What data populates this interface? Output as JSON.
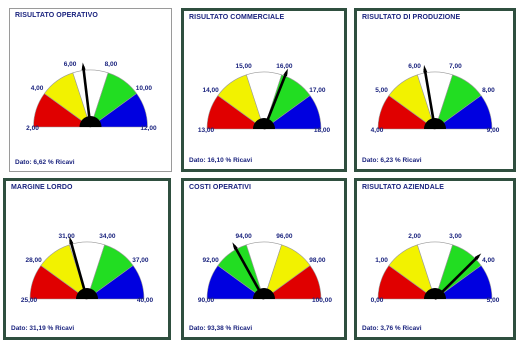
{
  "panels": [
    {
      "title": "RISULTATO OPERATIVO",
      "footer": "Dato: 6,62 % Ricavi",
      "ticks": [
        "2,00",
        "4,00",
        "6,00",
        "8,00",
        "10,00",
        "12,00"
      ],
      "value": 6.62,
      "colors": [
        "#e00000",
        "#f2f200",
        "#ffffff",
        "#22dd22",
        "#0000e0"
      ]
    },
    {
      "title": "RISULTATO  COMMERCIALE",
      "footer": "Dato: 16,10 % Ricavi",
      "ticks": [
        "13,00",
        "14,00",
        "15,00",
        "16,00",
        "17,00",
        "18,00"
      ],
      "value": 16.1,
      "colors": [
        "#e00000",
        "#f2f200",
        "#ffffff",
        "#22dd22",
        "#0000e0"
      ]
    },
    {
      "title": "RISULTATO  DI PRODUZIONE",
      "footer": "Dato: 6,23 % Ricavi",
      "ticks": [
        "4,00",
        "5,00",
        "6,00",
        "7,00",
        "8,00",
        "9,00"
      ],
      "value": 6.23,
      "colors": [
        "#e00000",
        "#f2f200",
        "#ffffff",
        "#22dd22",
        "#0000e0"
      ]
    },
    {
      "title": "MARGINE LORDO",
      "footer": "Dato: 31,19 % Ricavi",
      "ticks": [
        "25,00",
        "28,00",
        "31,00",
        "34,00",
        "37,00",
        "40,00"
      ],
      "value": 31.19,
      "colors": [
        "#e00000",
        "#f2f200",
        "#ffffff",
        "#22dd22",
        "#0000e0"
      ]
    },
    {
      "title": "COSTI OPERATIVI",
      "footer": "Dato: 93,38 % Ricavi",
      "ticks": [
        "90,00",
        "92,00",
        "94,00",
        "96,00",
        "98,00",
        "100,00"
      ],
      "value": 93.38,
      "colors": [
        "#0000e0",
        "#22dd22",
        "#ffffff",
        "#f2f200",
        "#e00000"
      ]
    },
    {
      "title": "RISULTATO  AZIENDALE",
      "footer": "Dato: 3,76 % Ricavi",
      "ticks": [
        "0,00",
        "1,00",
        "2,00",
        "3,00",
        "4,00",
        "5,00"
      ],
      "value": 3.76,
      "colors": [
        "#e00000",
        "#f2f200",
        "#ffffff",
        "#22dd22",
        "#0000e0"
      ]
    }
  ]
}
